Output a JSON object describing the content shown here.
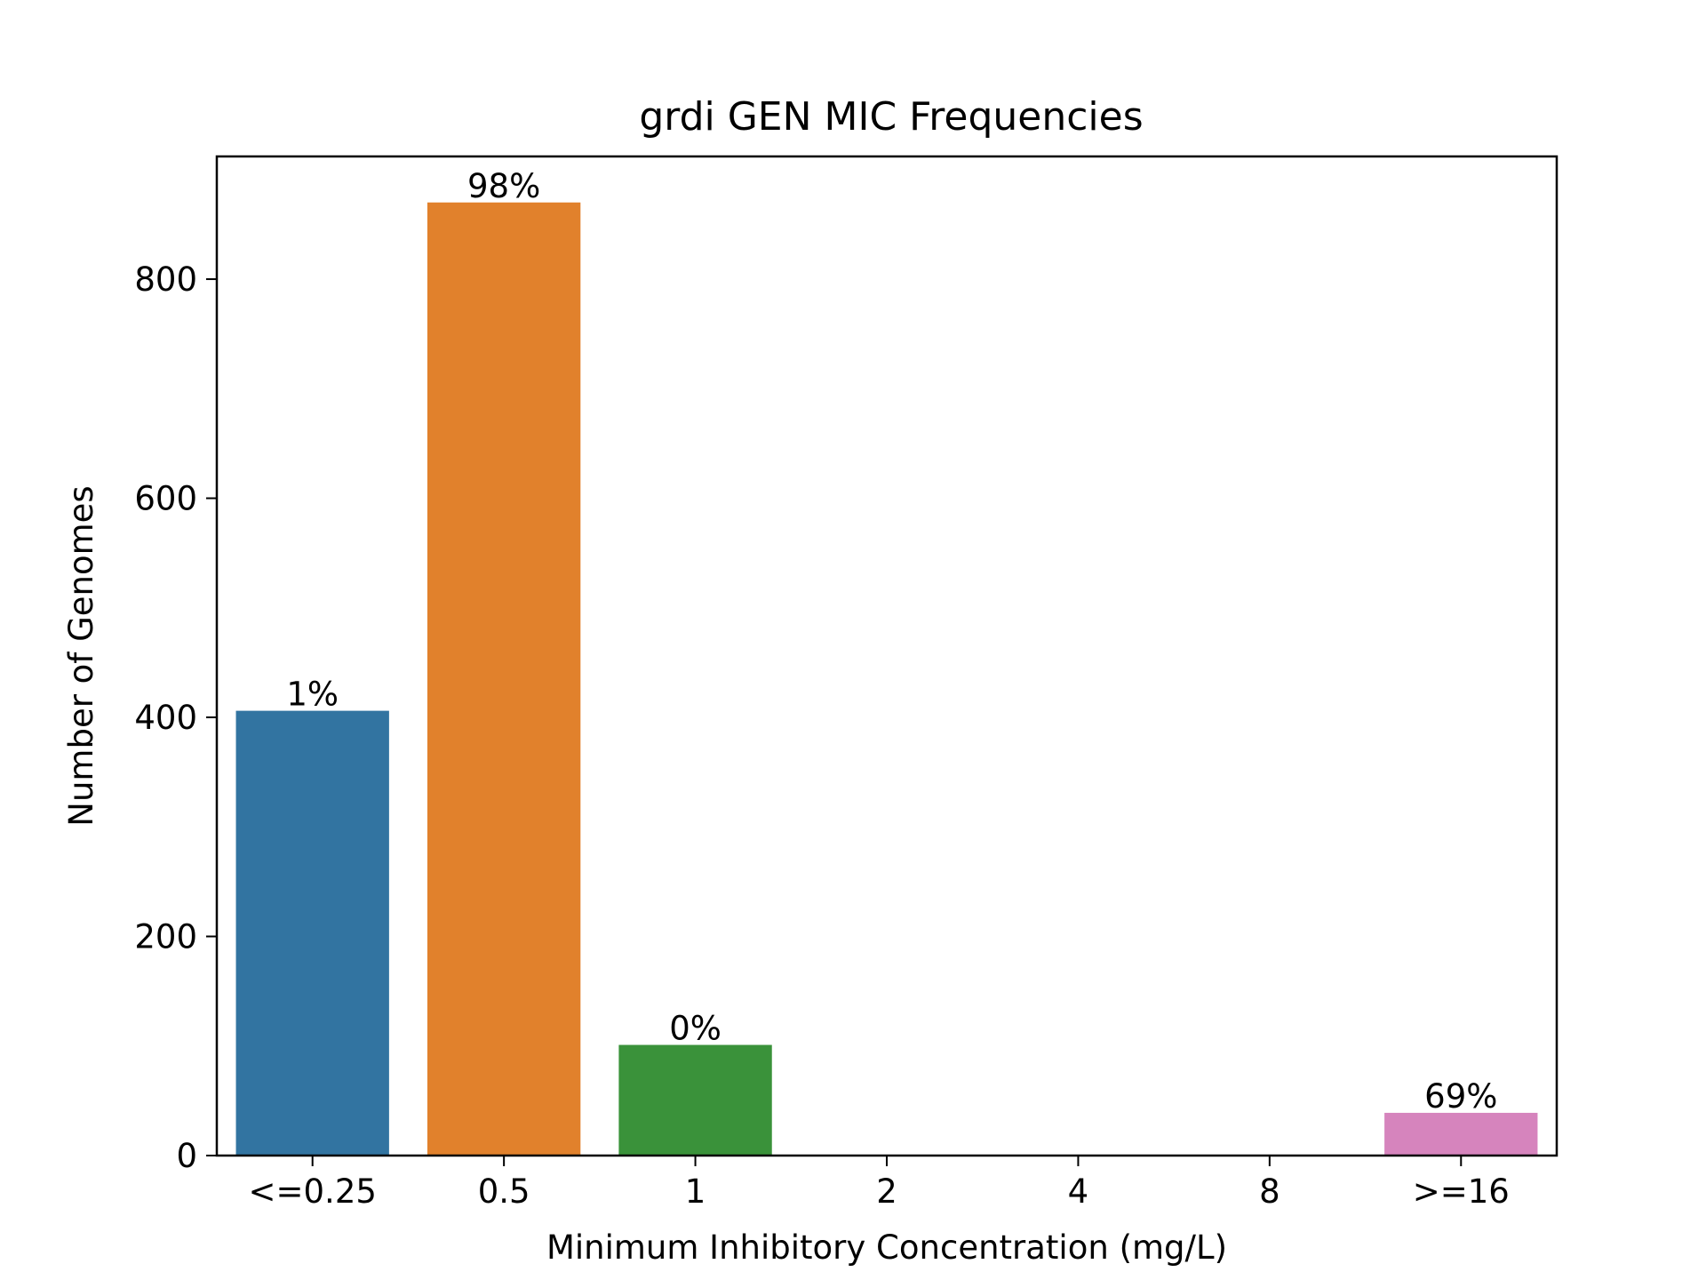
{
  "chart_data": {
    "type": "bar",
    "title": "grdi GEN MIC Frequencies",
    "xlabel": "Minimum Inhibitory Concentration (mg/L)",
    "ylabel": "Number of Genomes",
    "categories": [
      "<=0.25",
      "0.5",
      "1",
      "2",
      "4",
      "8",
      ">=16"
    ],
    "values": [
      406,
      870,
      101,
      0,
      0,
      0,
      39
    ],
    "bar_labels": [
      "1%",
      "98%",
      "0%",
      "",
      "",
      "",
      "69%"
    ],
    "colors": [
      "#3274a1",
      "#e1812c",
      "#3a923a",
      "#c03d3e",
      "#9372b2",
      "#845b53",
      "#d684bd"
    ],
    "ylim": [
      0,
      912
    ],
    "yticks": [
      0,
      200,
      400,
      600,
      800
    ],
    "grid": false,
    "legend": "none"
  }
}
